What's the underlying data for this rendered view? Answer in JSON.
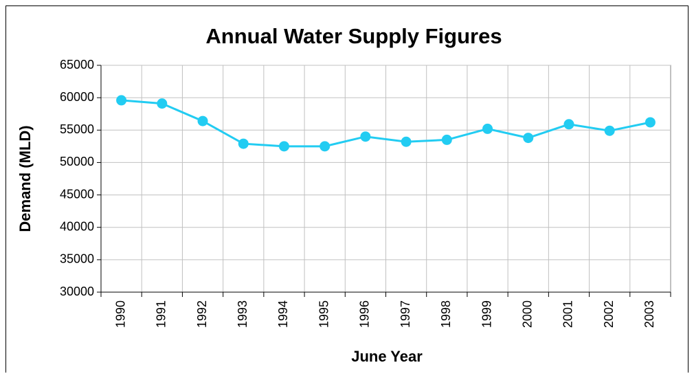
{
  "chart_data": {
    "type": "line",
    "title": "Annual Water Supply Figures",
    "x_label": "June Year",
    "y_label": "Demand (MLD)",
    "categories": [
      "1990",
      "1991",
      "1992",
      "1993",
      "1994",
      "1995",
      "1996",
      "1997",
      "1998",
      "1999",
      "2000",
      "2001",
      "2002",
      "2003"
    ],
    "series": [
      {
        "name": "Demand",
        "color": "#22ccf2",
        "values": [
          59600,
          59100,
          56400,
          52900,
          52500,
          52500,
          54000,
          53200,
          53500,
          55200,
          53800,
          55900,
          54900,
          56200
        ]
      }
    ],
    "ylim": [
      30000,
      65000
    ],
    "yticks": [
      30000,
      35000,
      40000,
      45000,
      50000,
      55000,
      60000,
      65000
    ],
    "grid": true
  }
}
